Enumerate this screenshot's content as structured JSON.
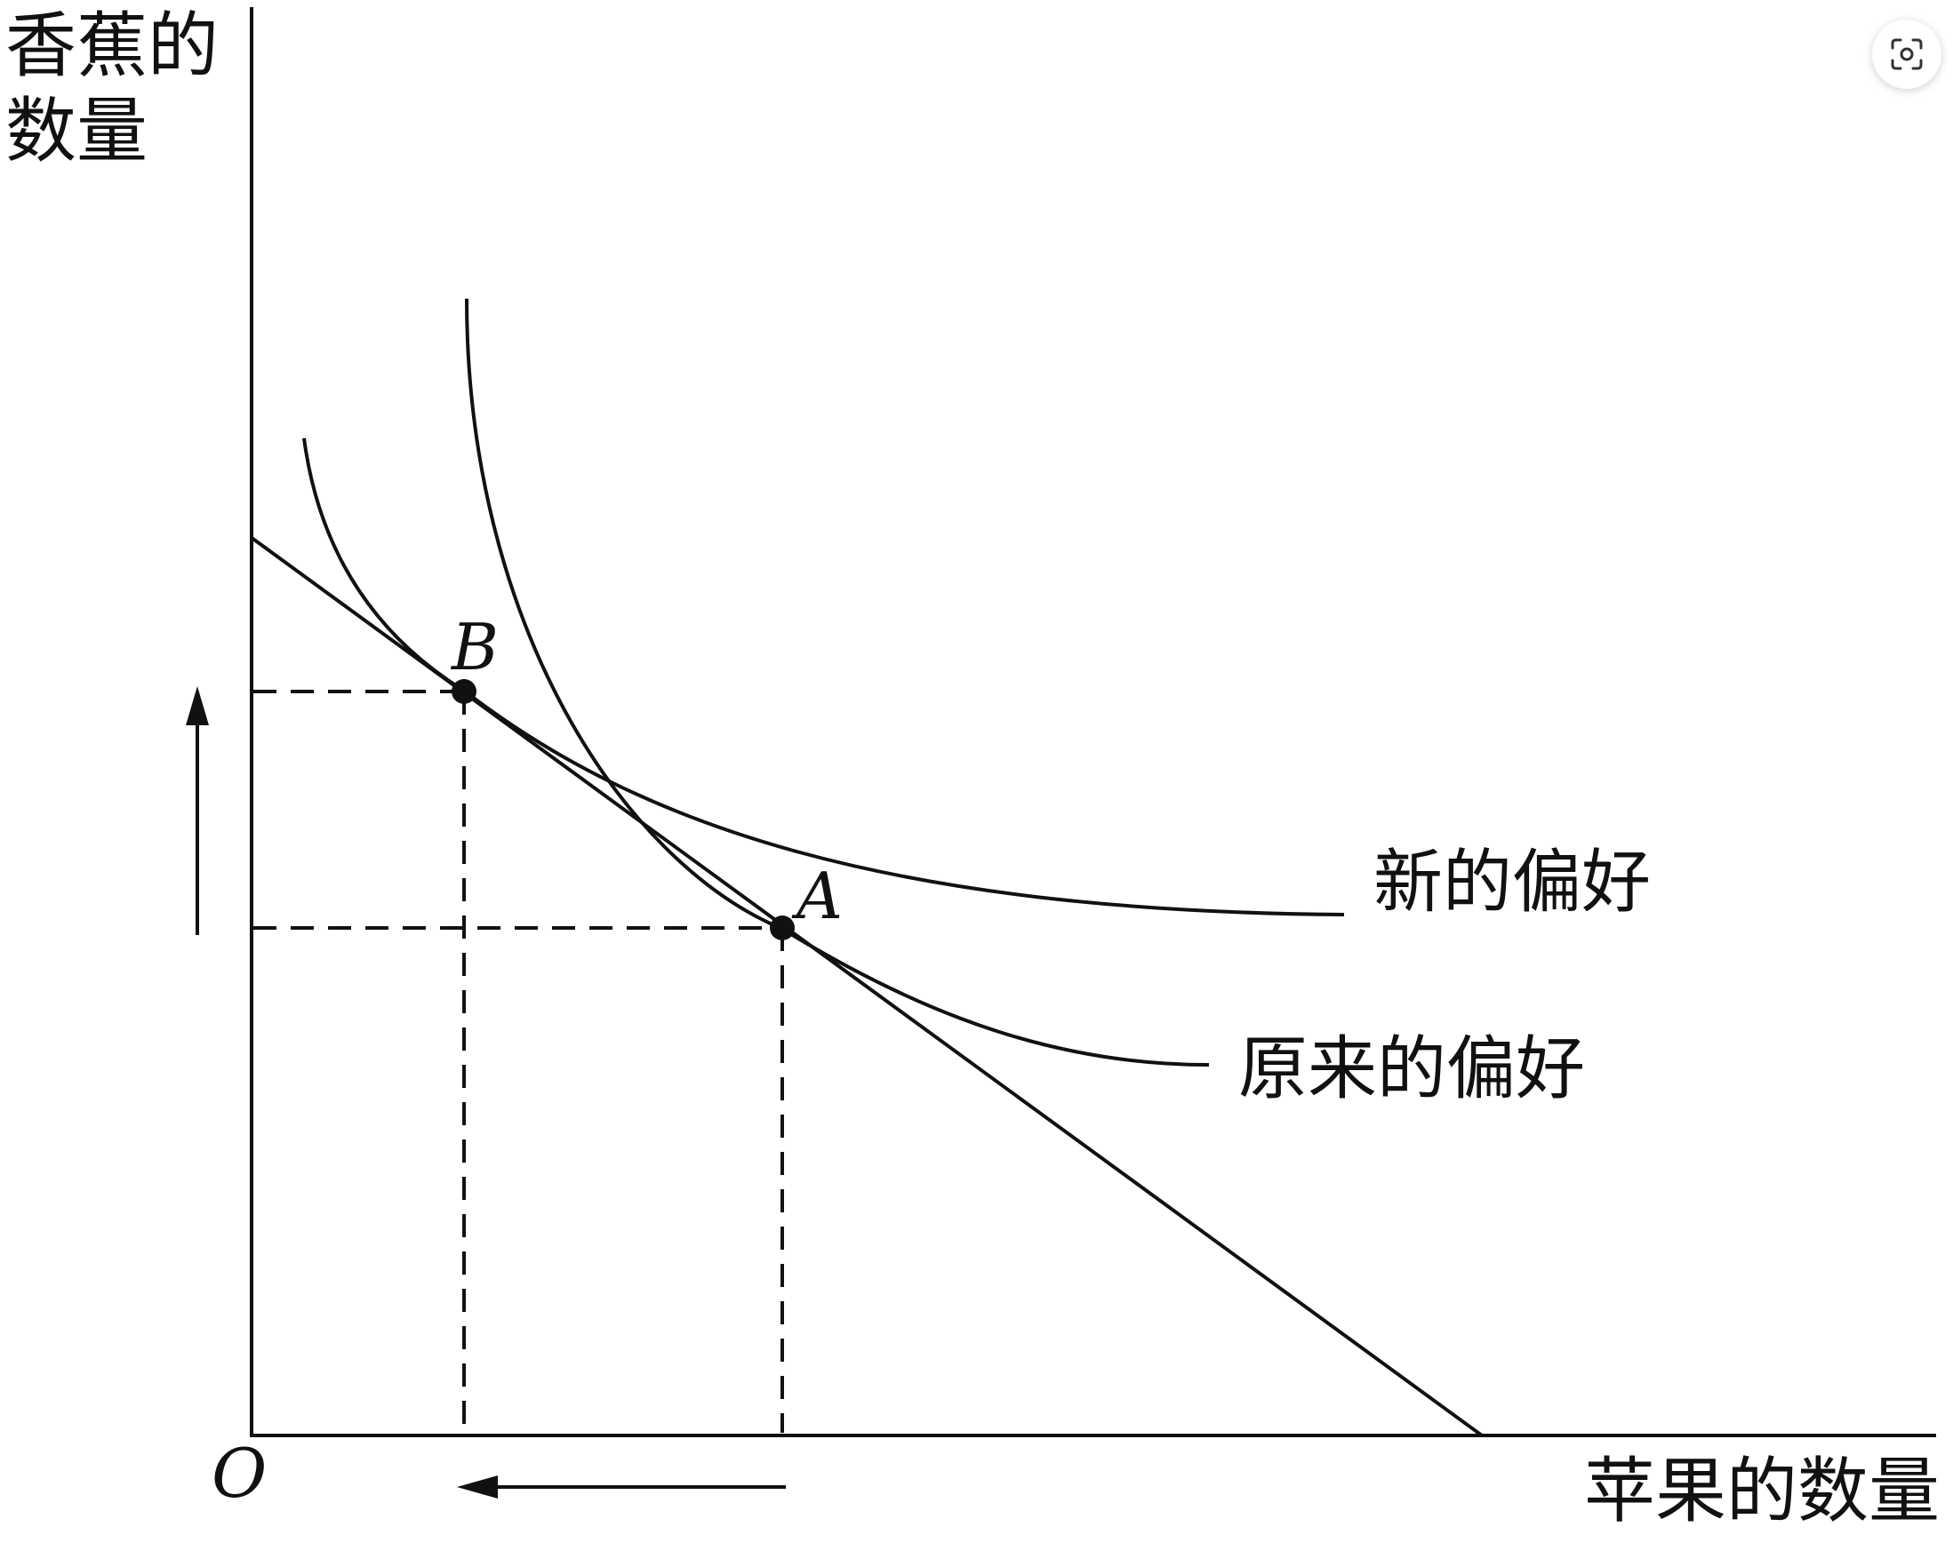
{
  "axes": {
    "y_label_line1": "香蕉的",
    "y_label_line2": "数量",
    "x_label": "苹果的数量",
    "origin": "O"
  },
  "points": {
    "A": "A",
    "B": "B"
  },
  "curves": {
    "new_preference": "新的偏好",
    "original_preference": "原来的偏好"
  },
  "icons": {
    "corner_button": "screen-capture-icon"
  }
}
